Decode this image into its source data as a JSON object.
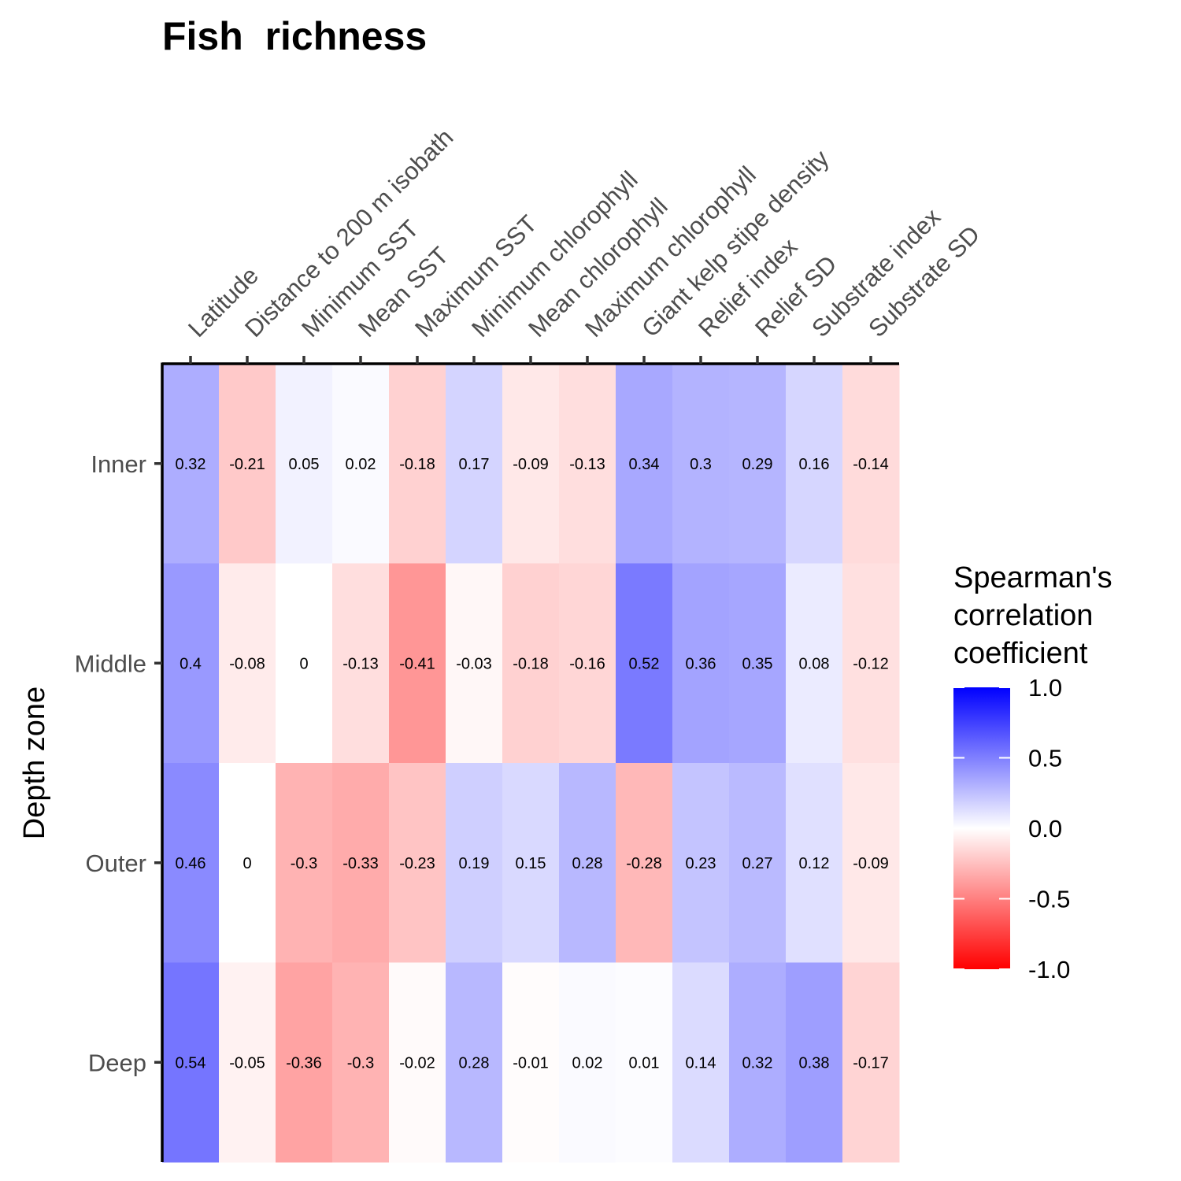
{
  "chart_data": {
    "type": "heatmap",
    "title": "Fish  richness",
    "ylabel": "Depth zone",
    "xlabel": "",
    "x": [
      "Latitude",
      "Distance to 200 m isobath",
      "Minimum SST",
      "Mean SST",
      "Maximum SST",
      "Minimum chlorophyll",
      "Mean chlorophyll",
      "Maximum chlorophyll",
      "Giant kelp stipe density",
      "Relief index",
      "Relief SD",
      "Substrate index",
      "Substrate SD"
    ],
    "y": [
      "Inner",
      "Middle",
      "Outer",
      "Deep"
    ],
    "values": [
      [
        0.32,
        -0.21,
        0.05,
        0.02,
        -0.18,
        0.17,
        -0.09,
        -0.13,
        0.34,
        0.3,
        0.29,
        0.16,
        -0.14
      ],
      [
        0.4,
        -0.08,
        0,
        -0.13,
        -0.41,
        -0.03,
        -0.18,
        -0.16,
        0.52,
        0.36,
        0.35,
        0.08,
        -0.12
      ],
      [
        0.46,
        0,
        -0.3,
        -0.33,
        -0.23,
        0.19,
        0.15,
        0.28,
        -0.28,
        0.23,
        0.27,
        0.12,
        -0.09
      ],
      [
        0.54,
        -0.05,
        -0.36,
        -0.3,
        -0.02,
        0.28,
        -0.01,
        0.02,
        0.01,
        0.14,
        0.32,
        0.38,
        -0.17
      ]
    ],
    "legend": {
      "title_lines": [
        "Spearman's",
        "correlation",
        "coefficient"
      ],
      "ticks": [
        "1.0",
        "0.5",
        "0.0",
        "-0.5",
        "-1.0"
      ],
      "tick_values": [
        1.0,
        0.5,
        0.0,
        -0.5,
        -1.0
      ],
      "range": [
        -1,
        1
      ],
      "colors": {
        "low": "#ff0000",
        "mid": "#ffffff",
        "high": "#0000ff"
      },
      "placement": "right"
    }
  }
}
